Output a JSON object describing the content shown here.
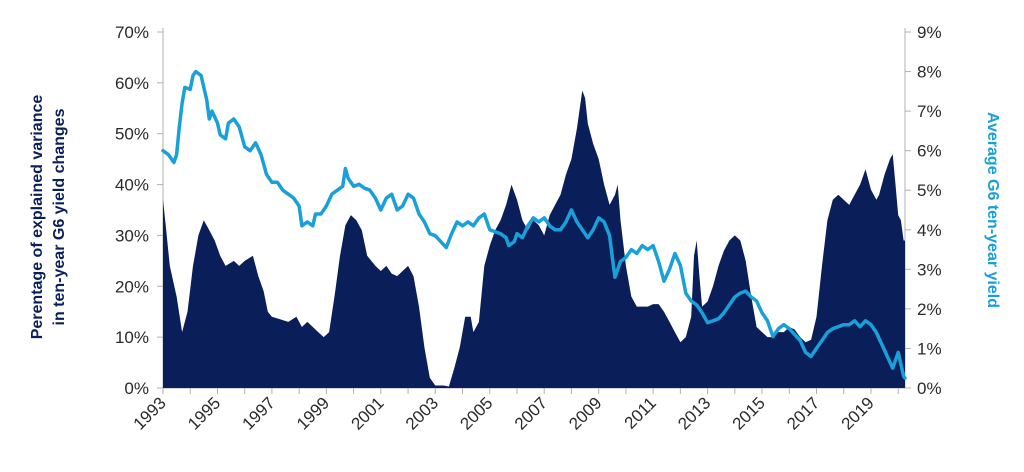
{
  "chart_data": {
    "type": "area+line",
    "title": "",
    "xlabel": "",
    "ylabel_left_lines": [
      "Perentage of  explained variance",
      "in ten-year G6 yield changes"
    ],
    "ylabel_right": "Average G6 ten-year yield",
    "colors": {
      "area": "#0a1e5a",
      "line": "#1aa0d8",
      "axis": "#b0b0b0",
      "text": "#2a2a2a"
    },
    "x_range": [
      1993.0,
      2020.25
    ],
    "x_tick_labels": [
      "1993",
      "1995",
      "1997",
      "1999",
      "2001",
      "2003",
      "2005",
      "2007",
      "2009",
      "2011",
      "2013",
      "2015",
      "2017",
      "2019"
    ],
    "x_tick_values": [
      1993,
      1995,
      1997,
      1999,
      2001,
      2003,
      2005,
      2007,
      2009,
      2011,
      2013,
      2015,
      2017,
      2019
    ],
    "y_left_range": [
      0,
      70
    ],
    "y_left_tick_labels": [
      "0%",
      "10%",
      "20%",
      "30%",
      "40%",
      "50%",
      "60%",
      "70%"
    ],
    "y_left_tick_values": [
      0,
      10,
      20,
      30,
      40,
      50,
      60,
      70
    ],
    "y_right_range": [
      0,
      9
    ],
    "y_right_tick_labels": [
      "0%",
      "1%",
      "2%",
      "3%",
      "4%",
      "5%",
      "6%",
      "7%",
      "8%",
      "9%"
    ],
    "y_right_tick_values": [
      0,
      1,
      2,
      3,
      4,
      5,
      6,
      7,
      8,
      9
    ],
    "series": [
      {
        "name": "Perentage of  explained variance in ten-year G6 yield changes",
        "kind": "area",
        "axis": "left",
        "points": [
          [
            1993.0,
            37
          ],
          [
            1993.1,
            32
          ],
          [
            1993.25,
            24
          ],
          [
            1993.5,
            18
          ],
          [
            1993.7,
            11
          ],
          [
            1993.9,
            15
          ],
          [
            1994.1,
            24
          ],
          [
            1994.3,
            30
          ],
          [
            1994.5,
            33
          ],
          [
            1994.7,
            31
          ],
          [
            1994.9,
            29
          ],
          [
            1995.1,
            26
          ],
          [
            1995.3,
            24
          ],
          [
            1995.6,
            25
          ],
          [
            1995.8,
            24
          ],
          [
            1996.0,
            25
          ],
          [
            1996.3,
            26
          ],
          [
            1996.5,
            22
          ],
          [
            1996.7,
            19
          ],
          [
            1996.85,
            15
          ],
          [
            1997.0,
            14
          ],
          [
            1997.3,
            13.5
          ],
          [
            1997.6,
            13
          ],
          [
            1997.9,
            14
          ],
          [
            1998.1,
            12
          ],
          [
            1998.3,
            13
          ],
          [
            1998.5,
            12
          ],
          [
            1998.7,
            11
          ],
          [
            1998.9,
            10
          ],
          [
            1999.1,
            11
          ],
          [
            1999.3,
            18
          ],
          [
            1999.5,
            26
          ],
          [
            1999.7,
            32
          ],
          [
            1999.9,
            34
          ],
          [
            2000.1,
            33
          ],
          [
            2000.3,
            31
          ],
          [
            2000.5,
            26
          ],
          [
            2000.8,
            24
          ],
          [
            2001.0,
            23
          ],
          [
            2001.2,
            24
          ],
          [
            2001.4,
            22.5
          ],
          [
            2001.6,
            22
          ],
          [
            2001.8,
            23
          ],
          [
            2002.0,
            24
          ],
          [
            2002.2,
            22
          ],
          [
            2002.4,
            16
          ],
          [
            2002.6,
            8
          ],
          [
            2002.8,
            2
          ],
          [
            2003.0,
            0.5
          ],
          [
            2003.3,
            0.5
          ],
          [
            2003.5,
            0.3
          ],
          [
            2003.7,
            4
          ],
          [
            2003.9,
            8
          ],
          [
            2004.1,
            14
          ],
          [
            2004.3,
            14
          ],
          [
            2004.4,
            11
          ],
          [
            2004.6,
            13
          ],
          [
            2004.8,
            24
          ],
          [
            2005.0,
            28
          ],
          [
            2005.2,
            31
          ],
          [
            2005.4,
            33
          ],
          [
            2005.6,
            36
          ],
          [
            2005.8,
            40
          ],
          [
            2006.0,
            37
          ],
          [
            2006.2,
            33
          ],
          [
            2006.4,
            31
          ],
          [
            2006.6,
            33
          ],
          [
            2006.8,
            32
          ],
          [
            2007.0,
            30
          ],
          [
            2007.2,
            34
          ],
          [
            2007.4,
            36
          ],
          [
            2007.6,
            38
          ],
          [
            2007.8,
            42
          ],
          [
            2008.0,
            45
          ],
          [
            2008.2,
            51
          ],
          [
            2008.4,
            58.5
          ],
          [
            2008.5,
            57
          ],
          [
            2008.6,
            52
          ],
          [
            2008.8,
            48
          ],
          [
            2009.0,
            45
          ],
          [
            2009.2,
            40
          ],
          [
            2009.4,
            36
          ],
          [
            2009.6,
            38
          ],
          [
            2009.7,
            40
          ],
          [
            2009.8,
            33
          ],
          [
            2010.0,
            24
          ],
          [
            2010.2,
            18
          ],
          [
            2010.4,
            16
          ],
          [
            2010.6,
            16
          ],
          [
            2010.8,
            16
          ],
          [
            2011.0,
            16.5
          ],
          [
            2011.2,
            16.5
          ],
          [
            2011.4,
            15
          ],
          [
            2011.6,
            13
          ],
          [
            2011.8,
            11
          ],
          [
            2012.0,
            9
          ],
          [
            2012.2,
            10
          ],
          [
            2012.4,
            14
          ],
          [
            2012.5,
            26
          ],
          [
            2012.6,
            29
          ],
          [
            2012.7,
            22
          ],
          [
            2012.8,
            16
          ],
          [
            2013.0,
            17
          ],
          [
            2013.2,
            20
          ],
          [
            2013.4,
            24
          ],
          [
            2013.6,
            27
          ],
          [
            2013.8,
            29
          ],
          [
            2014.0,
            30
          ],
          [
            2014.2,
            29
          ],
          [
            2014.4,
            25
          ],
          [
            2014.6,
            18
          ],
          [
            2014.8,
            12
          ],
          [
            2015.0,
            11
          ],
          [
            2015.2,
            10
          ],
          [
            2015.4,
            10
          ],
          [
            2015.6,
            11
          ],
          [
            2015.8,
            11
          ],
          [
            2016.0,
            12
          ],
          [
            2016.2,
            11.5
          ],
          [
            2016.4,
            10
          ],
          [
            2016.6,
            9
          ],
          [
            2016.8,
            9.5
          ],
          [
            2017.0,
            14
          ],
          [
            2017.2,
            24
          ],
          [
            2017.4,
            33
          ],
          [
            2017.6,
            37
          ],
          [
            2017.8,
            38
          ],
          [
            2018.0,
            37
          ],
          [
            2018.2,
            36
          ],
          [
            2018.4,
            38
          ],
          [
            2018.6,
            40
          ],
          [
            2018.8,
            43
          ],
          [
            2019.0,
            39
          ],
          [
            2019.2,
            37
          ],
          [
            2019.3,
            38
          ],
          [
            2019.5,
            42
          ],
          [
            2019.7,
            45
          ],
          [
            2019.8,
            46
          ],
          [
            2019.9,
            40
          ],
          [
            2020.0,
            34
          ],
          [
            2020.1,
            33
          ],
          [
            2020.2,
            29
          ],
          [
            2020.25,
            29
          ]
        ]
      },
      {
        "name": "Average G6 ten-year yield",
        "kind": "line",
        "axis": "right",
        "points": [
          [
            1993.0,
            6.0
          ],
          [
            1993.2,
            5.9
          ],
          [
            1993.4,
            5.7
          ],
          [
            1993.5,
            5.9
          ],
          [
            1993.6,
            6.6
          ],
          [
            1993.7,
            7.2
          ],
          [
            1993.8,
            7.6
          ],
          [
            1994.0,
            7.55
          ],
          [
            1994.1,
            7.9
          ],
          [
            1994.2,
            8.0
          ],
          [
            1994.4,
            7.9
          ],
          [
            1994.5,
            7.6
          ],
          [
            1994.6,
            7.3
          ],
          [
            1994.7,
            6.8
          ],
          [
            1994.8,
            7.0
          ],
          [
            1995.0,
            6.7
          ],
          [
            1995.1,
            6.4
          ],
          [
            1995.3,
            6.3
          ],
          [
            1995.4,
            6.7
          ],
          [
            1995.6,
            6.8
          ],
          [
            1995.8,
            6.6
          ],
          [
            1996.0,
            6.1
          ],
          [
            1996.2,
            6.0
          ],
          [
            1996.4,
            6.2
          ],
          [
            1996.6,
            5.9
          ],
          [
            1996.8,
            5.4
          ],
          [
            1997.0,
            5.2
          ],
          [
            1997.2,
            5.2
          ],
          [
            1997.4,
            5.0
          ],
          [
            1997.6,
            4.9
          ],
          [
            1997.8,
            4.8
          ],
          [
            1998.0,
            4.6
          ],
          [
            1998.1,
            4.1
          ],
          [
            1998.3,
            4.2
          ],
          [
            1998.5,
            4.1
          ],
          [
            1998.6,
            4.4
          ],
          [
            1998.8,
            4.4
          ],
          [
            1999.0,
            4.6
          ],
          [
            1999.2,
            4.9
          ],
          [
            1999.4,
            5.0
          ],
          [
            1999.6,
            5.1
          ],
          [
            1999.7,
            5.55
          ],
          [
            1999.8,
            5.3
          ],
          [
            2000.0,
            5.1
          ],
          [
            2000.2,
            5.15
          ],
          [
            2000.4,
            5.05
          ],
          [
            2000.6,
            5.0
          ],
          [
            2000.8,
            4.8
          ],
          [
            2001.0,
            4.5
          ],
          [
            2001.2,
            4.8
          ],
          [
            2001.4,
            4.9
          ],
          [
            2001.6,
            4.5
          ],
          [
            2001.8,
            4.6
          ],
          [
            2002.0,
            4.9
          ],
          [
            2002.2,
            4.8
          ],
          [
            2002.4,
            4.4
          ],
          [
            2002.6,
            4.2
          ],
          [
            2002.8,
            3.9
          ],
          [
            2003.0,
            3.85
          ],
          [
            2003.2,
            3.7
          ],
          [
            2003.4,
            3.55
          ],
          [
            2003.6,
            3.9
          ],
          [
            2003.8,
            4.2
          ],
          [
            2004.0,
            4.1
          ],
          [
            2004.2,
            4.2
          ],
          [
            2004.4,
            4.1
          ],
          [
            2004.6,
            4.3
          ],
          [
            2004.8,
            4.4
          ],
          [
            2005.0,
            4.0
          ],
          [
            2005.2,
            3.95
          ],
          [
            2005.4,
            3.9
          ],
          [
            2005.6,
            3.8
          ],
          [
            2005.7,
            3.6
          ],
          [
            2005.9,
            3.7
          ],
          [
            2006.0,
            3.9
          ],
          [
            2006.2,
            3.8
          ],
          [
            2006.4,
            4.1
          ],
          [
            2006.6,
            4.3
          ],
          [
            2006.8,
            4.2
          ],
          [
            2007.0,
            4.3
          ],
          [
            2007.2,
            4.1
          ],
          [
            2007.4,
            4.0
          ],
          [
            2007.6,
            4.0
          ],
          [
            2007.8,
            4.2
          ],
          [
            2008.0,
            4.5
          ],
          [
            2008.2,
            4.2
          ],
          [
            2008.4,
            4.0
          ],
          [
            2008.6,
            3.8
          ],
          [
            2008.8,
            4.0
          ],
          [
            2009.0,
            4.3
          ],
          [
            2009.2,
            4.2
          ],
          [
            2009.4,
            3.85
          ],
          [
            2009.5,
            3.3
          ],
          [
            2009.6,
            2.8
          ],
          [
            2009.8,
            3.2
          ],
          [
            2010.0,
            3.3
          ],
          [
            2010.2,
            3.5
          ],
          [
            2010.4,
            3.4
          ],
          [
            2010.6,
            3.6
          ],
          [
            2010.8,
            3.5
          ],
          [
            2011.0,
            3.6
          ],
          [
            2011.2,
            3.2
          ],
          [
            2011.4,
            2.7
          ],
          [
            2011.6,
            3.0
          ],
          [
            2011.8,
            3.4
          ],
          [
            2012.0,
            3.1
          ],
          [
            2012.2,
            2.4
          ],
          [
            2012.4,
            2.2
          ],
          [
            2012.6,
            2.1
          ],
          [
            2012.8,
            1.9
          ],
          [
            2013.0,
            1.65
          ],
          [
            2013.2,
            1.7
          ],
          [
            2013.4,
            1.75
          ],
          [
            2013.6,
            1.9
          ],
          [
            2013.8,
            2.1
          ],
          [
            2014.0,
            2.3
          ],
          [
            2014.2,
            2.4
          ],
          [
            2014.4,
            2.45
          ],
          [
            2014.6,
            2.3
          ],
          [
            2014.8,
            2.2
          ],
          [
            2015.0,
            1.9
          ],
          [
            2015.2,
            1.7
          ],
          [
            2015.4,
            1.3
          ],
          [
            2015.6,
            1.5
          ],
          [
            2015.8,
            1.6
          ],
          [
            2016.0,
            1.5
          ],
          [
            2016.2,
            1.35
          ],
          [
            2016.4,
            1.2
          ],
          [
            2016.6,
            0.9
          ],
          [
            2016.8,
            0.8
          ],
          [
            2017.0,
            1.0
          ],
          [
            2017.2,
            1.2
          ],
          [
            2017.4,
            1.4
          ],
          [
            2017.6,
            1.5
          ],
          [
            2017.8,
            1.55
          ],
          [
            2018.0,
            1.6
          ],
          [
            2018.2,
            1.6
          ],
          [
            2018.4,
            1.7
          ],
          [
            2018.6,
            1.55
          ],
          [
            2018.8,
            1.7
          ],
          [
            2019.0,
            1.6
          ],
          [
            2019.2,
            1.4
          ],
          [
            2019.4,
            1.1
          ],
          [
            2019.6,
            0.8
          ],
          [
            2019.8,
            0.5
          ],
          [
            2020.0,
            0.9
          ],
          [
            2020.1,
            0.6
          ],
          [
            2020.2,
            0.3
          ],
          [
            2020.25,
            0.25
          ]
        ]
      }
    ]
  }
}
